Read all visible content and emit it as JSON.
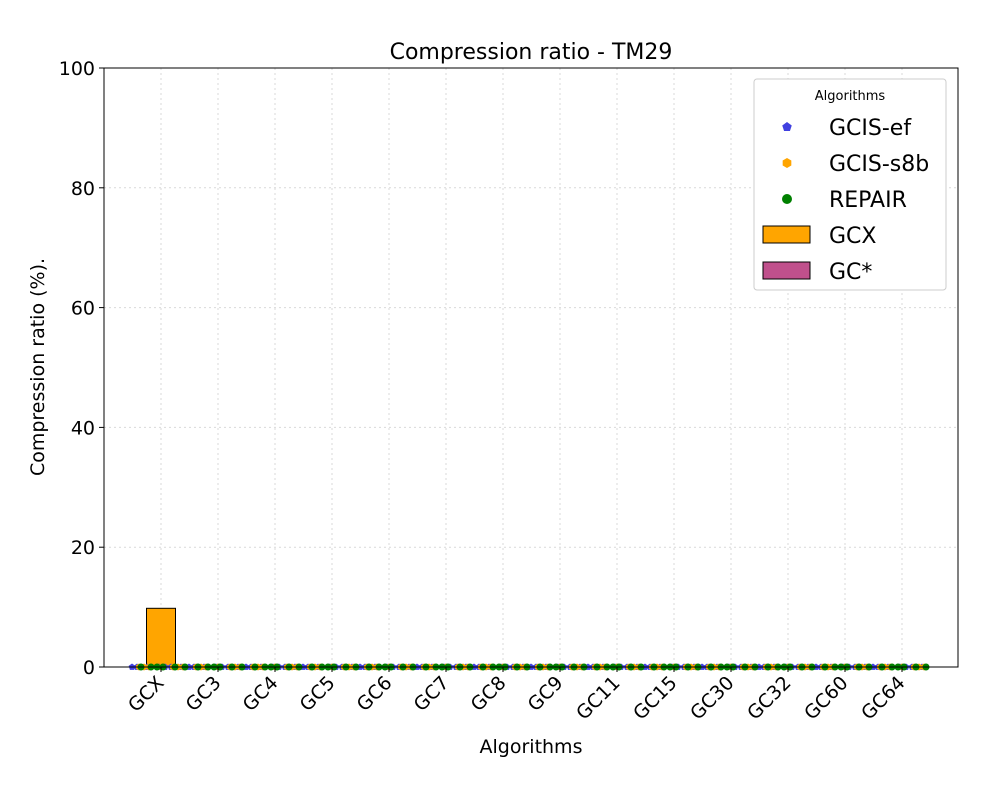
{
  "chart_data": {
    "type": "bar",
    "title": "Compression ratio -  TM29",
    "xlabel": "Algorithms",
    "ylabel": "Compression ratio (%).",
    "ylim": [
      0,
      100
    ],
    "yticks": [
      0,
      20,
      40,
      60,
      80,
      100
    ],
    "grid": true,
    "legend_placement": "top-right",
    "legend": {
      "title": "Algorithms",
      "entries": [
        {
          "label": "GCIS-ef",
          "kind": "point",
          "marker": "pentagon",
          "color": "#4040e0"
        },
        {
          "label": "GCIS-s8b",
          "kind": "point",
          "marker": "hexagon",
          "color": "#ffa500"
        },
        {
          "label": "REPAIR",
          "kind": "point",
          "marker": "circle",
          "color": "#008000"
        },
        {
          "label": "GCX",
          "kind": "bar",
          "color": "#ffa500"
        },
        {
          "label": "GC*",
          "kind": "bar",
          "color": "#c0508c"
        }
      ]
    },
    "categories": [
      "GCX",
      "GC3",
      "GC4",
      "GC5",
      "GC6",
      "GC7",
      "GC8",
      "GC9",
      "GC11",
      "GC15",
      "GC30",
      "GC32",
      "GC60",
      "GC64"
    ],
    "series": [
      {
        "name": "GCX",
        "kind": "bar",
        "color": "#ffa500",
        "values": [
          9.8,
          0,
          0,
          0,
          0,
          0,
          0,
          0,
          0,
          0,
          0,
          0,
          0,
          0
        ]
      },
      {
        "name": "GC*",
        "kind": "bar",
        "color": "#c0508c",
        "values": [
          0,
          0,
          0,
          0,
          0,
          0,
          0,
          0,
          0,
          0,
          0,
          0,
          0,
          0
        ]
      },
      {
        "name": "GCIS-ef",
        "kind": "point",
        "color": "#4040e0",
        "values": [
          0,
          0,
          0,
          0,
          0,
          0,
          0,
          0,
          0,
          0,
          0,
          0,
          0,
          0
        ]
      },
      {
        "name": "GCIS-s8b",
        "kind": "point",
        "color": "#ffa500",
        "values": [
          0,
          0,
          0,
          0,
          0,
          0,
          0,
          0,
          0,
          0,
          0,
          0,
          0,
          0
        ]
      },
      {
        "name": "REPAIR",
        "kind": "point",
        "color": "#008000",
        "values": [
          0,
          0,
          0,
          0,
          0,
          0,
          0,
          0,
          0,
          0,
          0,
          0,
          0,
          0
        ]
      }
    ]
  }
}
